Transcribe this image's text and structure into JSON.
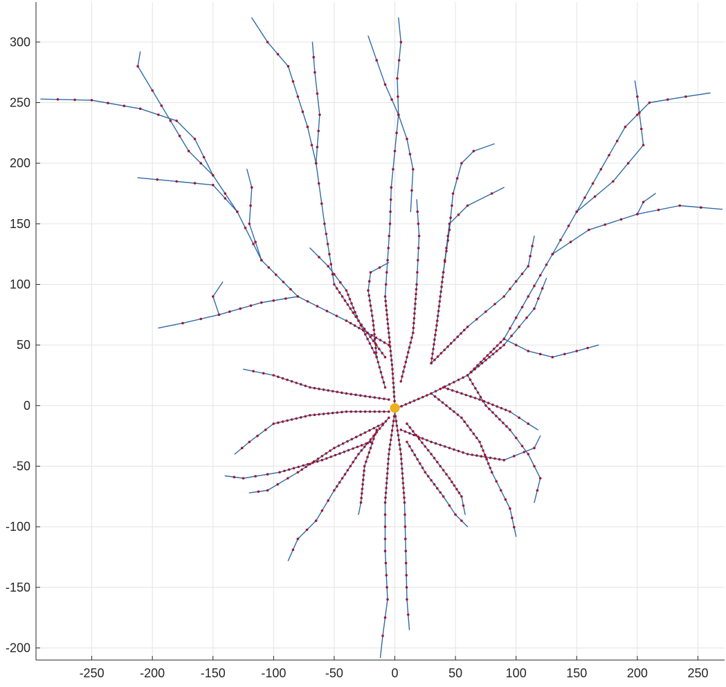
{
  "chart_data": {
    "type": "scatter",
    "title": "",
    "xlabel": "",
    "ylabel": "",
    "xlim": [
      -296,
      272
    ],
    "ylim": [
      -210,
      333
    ],
    "xticks": [
      -250,
      -200,
      -150,
      -100,
      -50,
      0,
      50,
      100,
      150,
      200,
      250
    ],
    "yticks": [
      -200,
      -150,
      -100,
      -50,
      0,
      50,
      100,
      150,
      200,
      250,
      300
    ],
    "xtick_labels": [
      "-250",
      "-200",
      "-150",
      "-100",
      "-50",
      "0",
      "50",
      "100",
      "150",
      "200",
      "250"
    ],
    "ytick_labels": [
      "-200",
      "-150",
      "-100",
      "-50",
      "0",
      "50",
      "100",
      "150",
      "200",
      "250",
      "300"
    ],
    "grid": true,
    "legend": "none",
    "colors": {
      "trace": "#2e6aa6",
      "marker": "#a2142f",
      "soma": "#edb120",
      "grid": "#e3e3e3",
      "axis": "#262626"
    },
    "soma": {
      "x": 0,
      "y": -2,
      "r": 4
    },
    "branches": [
      {
        "name": "apical-up-center",
        "points": [
          [
            0,
            0
          ],
          [
            -2,
            30
          ],
          [
            -5,
            60
          ],
          [
            -8,
            90
          ],
          [
            -6,
            120
          ],
          [
            -4,
            150
          ],
          [
            -3,
            180
          ],
          [
            0,
            210
          ],
          [
            3,
            240
          ],
          [
            2,
            270
          ],
          [
            5,
            300
          ],
          [
            3,
            320
          ]
        ]
      },
      {
        "name": "apical-up-center-side",
        "points": [
          [
            3,
            240
          ],
          [
            -8,
            265
          ],
          [
            -15,
            285
          ],
          [
            -22,
            305
          ]
        ]
      },
      {
        "name": "apical-up-right-short",
        "points": [
          [
            3,
            240
          ],
          [
            10,
            220
          ],
          [
            15,
            195
          ],
          [
            13,
            160
          ]
        ]
      },
      {
        "name": "apical-up-left-long",
        "points": [
          [
            -8,
            40
          ],
          [
            -30,
            70
          ],
          [
            -50,
            100
          ],
          [
            -58,
            150
          ],
          [
            -65,
            200
          ],
          [
            -72,
            230
          ],
          [
            -80,
            255
          ],
          [
            -88,
            280
          ],
          [
            -105,
            300
          ],
          [
            -118,
            320
          ]
        ]
      },
      {
        "name": "apical-up-left-fork",
        "points": [
          [
            -65,
            200
          ],
          [
            -62,
            240
          ],
          [
            -66,
            275
          ],
          [
            -68,
            300
          ]
        ]
      },
      {
        "name": "left-main-trunk",
        "points": [
          [
            -5,
            50
          ],
          [
            -40,
            70
          ],
          [
            -80,
            90
          ],
          [
            -110,
            120
          ],
          [
            -130,
            160
          ],
          [
            -150,
            190
          ],
          [
            -165,
            220
          ],
          [
            -180,
            235
          ],
          [
            -210,
            245
          ],
          [
            -250,
            252
          ],
          [
            -292,
            253
          ]
        ]
      },
      {
        "name": "left-upper-branch",
        "points": [
          [
            -150,
            190
          ],
          [
            -170,
            210
          ],
          [
            -185,
            235
          ],
          [
            -200,
            260
          ],
          [
            -212,
            280
          ],
          [
            -210,
            292
          ]
        ]
      },
      {
        "name": "left-horizontal-branch",
        "points": [
          [
            -130,
            160
          ],
          [
            -150,
            182
          ],
          [
            -180,
            185
          ],
          [
            -212,
            188
          ]
        ]
      },
      {
        "name": "left-mid-branch",
        "points": [
          [
            -80,
            90
          ],
          [
            -110,
            85
          ],
          [
            -145,
            75
          ],
          [
            -175,
            68
          ],
          [
            -195,
            64
          ]
        ]
      },
      {
        "name": "left-small-branch",
        "points": [
          [
            -110,
            120
          ],
          [
            -120,
            150
          ],
          [
            -118,
            180
          ],
          [
            -122,
            195
          ]
        ]
      },
      {
        "name": "left-low-branch",
        "points": [
          [
            -145,
            75
          ],
          [
            -150,
            90
          ],
          [
            -142,
            102
          ]
        ]
      },
      {
        "name": "up-right-main-trunk",
        "points": [
          [
            2,
            -2
          ],
          [
            30,
            10
          ],
          [
            60,
            25
          ],
          [
            90,
            55
          ],
          [
            110,
            90
          ],
          [
            130,
            125
          ],
          [
            150,
            160
          ],
          [
            170,
            195
          ],
          [
            190,
            230
          ],
          [
            210,
            250
          ],
          [
            240,
            255
          ],
          [
            260,
            258
          ]
        ]
      },
      {
        "name": "up-right-outer-branch",
        "points": [
          [
            150,
            160
          ],
          [
            180,
            185
          ],
          [
            205,
            215
          ],
          [
            200,
            255
          ],
          [
            198,
            268
          ]
        ]
      },
      {
        "name": "right-horizontal-branch",
        "points": [
          [
            130,
            125
          ],
          [
            160,
            145
          ],
          [
            200,
            158
          ],
          [
            235,
            165
          ],
          [
            270,
            162
          ]
        ]
      },
      {
        "name": "right-small-fork",
        "points": [
          [
            200,
            158
          ],
          [
            205,
            168
          ],
          [
            215,
            175
          ]
        ]
      },
      {
        "name": "up-right-mid-branch",
        "points": [
          [
            30,
            35
          ],
          [
            35,
            70
          ],
          [
            40,
            110
          ],
          [
            45,
            150
          ],
          [
            60,
            165
          ],
          [
            80,
            175
          ],
          [
            90,
            180
          ]
        ]
      },
      {
        "name": "up-right-tall-branch",
        "points": [
          [
            40,
            110
          ],
          [
            45,
            145
          ],
          [
            48,
            175
          ],
          [
            55,
            200
          ],
          [
            65,
            210
          ],
          [
            82,
            216
          ]
        ]
      },
      {
        "name": "right-diagonal-branch-1",
        "points": [
          [
            30,
            35
          ],
          [
            60,
            65
          ],
          [
            90,
            90
          ],
          [
            110,
            115
          ],
          [
            115,
            140
          ]
        ]
      },
      {
        "name": "right-diagonal-branch-2",
        "points": [
          [
            60,
            25
          ],
          [
            90,
            50
          ],
          [
            115,
            80
          ],
          [
            125,
            105
          ]
        ]
      },
      {
        "name": "right-lower-horizontal",
        "points": [
          [
            90,
            55
          ],
          [
            110,
            45
          ],
          [
            130,
            40
          ],
          [
            150,
            45
          ],
          [
            168,
            50
          ]
        ]
      },
      {
        "name": "right-descending-1",
        "points": [
          [
            30,
            10
          ],
          [
            55,
            -10
          ],
          [
            70,
            -30
          ],
          [
            80,
            -55
          ],
          [
            95,
            -85
          ],
          [
            100,
            -108
          ]
        ]
      },
      {
        "name": "right-descending-2",
        "points": [
          [
            60,
            25
          ],
          [
            75,
            0
          ],
          [
            95,
            -20
          ],
          [
            110,
            -40
          ],
          [
            120,
            -60
          ],
          [
            115,
            -80
          ]
        ]
      },
      {
        "name": "right-descending-3",
        "points": [
          [
            40,
            15
          ],
          [
            70,
            5
          ],
          [
            95,
            -5
          ],
          [
            110,
            -15
          ],
          [
            118,
            -20
          ]
        ]
      },
      {
        "name": "right-low-horizontal",
        "points": [
          [
            5,
            -20
          ],
          [
            30,
            -30
          ],
          [
            60,
            -40
          ],
          [
            90,
            -45
          ],
          [
            115,
            -35
          ],
          [
            120,
            -25
          ]
        ]
      },
      {
        "name": "right-descending-4",
        "points": [
          [
            10,
            -30
          ],
          [
            25,
            -55
          ],
          [
            40,
            -75
          ],
          [
            50,
            -90
          ],
          [
            60,
            -100
          ]
        ]
      },
      {
        "name": "down-center-trunk",
        "points": [
          [
            0,
            -5
          ],
          [
            -5,
            -40
          ],
          [
            -8,
            -80
          ],
          [
            -8,
            -120
          ],
          [
            -6,
            -160
          ],
          [
            -10,
            -190
          ],
          [
            -12,
            -208
          ]
        ]
      },
      {
        "name": "down-center-right",
        "points": [
          [
            0,
            -5
          ],
          [
            5,
            -40
          ],
          [
            8,
            -80
          ],
          [
            9,
            -120
          ],
          [
            10,
            -160
          ],
          [
            12,
            -185
          ]
        ]
      },
      {
        "name": "down-left-branch",
        "points": [
          [
            -5,
            -10
          ],
          [
            -30,
            -40
          ],
          [
            -50,
            -70
          ],
          [
            -65,
            -95
          ],
          [
            -80,
            -110
          ],
          [
            -88,
            -128
          ]
        ]
      },
      {
        "name": "down-left-far",
        "points": [
          [
            -20,
            -30
          ],
          [
            -60,
            -45
          ],
          [
            -95,
            -55
          ],
          [
            -125,
            -60
          ],
          [
            -140,
            -58
          ]
        ]
      },
      {
        "name": "down-left-mid",
        "points": [
          [
            -10,
            -15
          ],
          [
            -50,
            -35
          ],
          [
            -80,
            -55
          ],
          [
            -105,
            -70
          ],
          [
            -120,
            -72
          ]
        ]
      },
      {
        "name": "left-horizontal-low",
        "points": [
          [
            -5,
            -5
          ],
          [
            -40,
            -5
          ],
          [
            -70,
            -8
          ],
          [
            -100,
            -15
          ],
          [
            -120,
            -30
          ],
          [
            -132,
            -40
          ]
        ]
      },
      {
        "name": "left-horizontal-mid",
        "points": [
          [
            -5,
            5
          ],
          [
            -40,
            10
          ],
          [
            -70,
            15
          ],
          [
            -100,
            25
          ],
          [
            -125,
            30
          ]
        ]
      },
      {
        "name": "up-left-thin-branch",
        "points": [
          [
            -8,
            15
          ],
          [
            -15,
            40
          ],
          [
            -30,
            70
          ],
          [
            -40,
            95
          ],
          [
            -55,
            115
          ],
          [
            -70,
            130
          ]
        ]
      },
      {
        "name": "up-left-short-branch",
        "points": [
          [
            -15,
            40
          ],
          [
            -18,
            70
          ],
          [
            -22,
            95
          ],
          [
            -20,
            110
          ],
          [
            -5,
            118
          ]
        ]
      },
      {
        "name": "down-right-mid",
        "points": [
          [
            10,
            -15
          ],
          [
            30,
            -40
          ],
          [
            45,
            -60
          ],
          [
            55,
            -75
          ],
          [
            58,
            -90
          ]
        ]
      },
      {
        "name": "down-left-small",
        "points": [
          [
            -15,
            -20
          ],
          [
            -25,
            -50
          ],
          [
            -28,
            -80
          ],
          [
            -30,
            -90
          ]
        ]
      },
      {
        "name": "up-center-right-thin",
        "points": [
          [
            5,
            20
          ],
          [
            15,
            60
          ],
          [
            18,
            100
          ],
          [
            20,
            140
          ],
          [
            18,
            170
          ]
        ]
      }
    ]
  }
}
